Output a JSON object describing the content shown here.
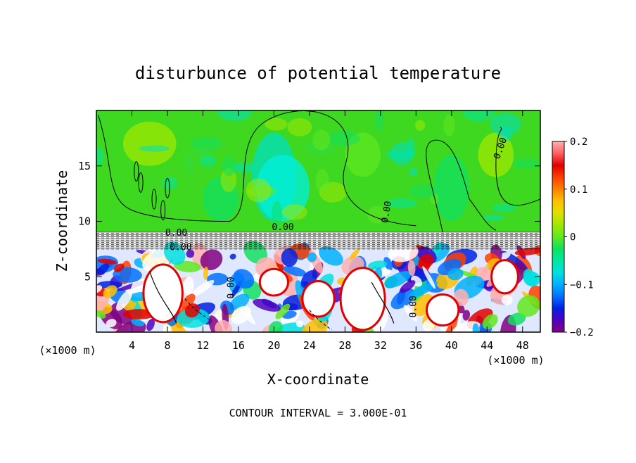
{
  "chart_data": {
    "type": "heatmap",
    "title": "disturbunce of potential temperature",
    "xlabel": "X-coordinate",
    "ylabel": "Z-coordinate",
    "x_unit": "(×1000 m)",
    "z_unit": "(×1000 m)",
    "xlim": [
      0,
      50
    ],
    "ylim": [
      0,
      20
    ],
    "x_ticks": [
      4,
      8,
      12,
      16,
      20,
      24,
      28,
      32,
      36,
      40,
      44,
      48
    ],
    "y_ticks": [
      5,
      10,
      15
    ],
    "colorbar": {
      "min": -0.2,
      "max": 0.2,
      "tick_values": [
        0.2,
        0.1,
        0,
        -0.1,
        -0.2
      ],
      "tick_labels": [
        "0.2",
        "0.1",
        "0",
        "−0.1",
        "−0.2"
      ],
      "colors": [
        "#800080",
        "#5000c0",
        "#0020e0",
        "#0070ff",
        "#00b0ff",
        "#00e0e0",
        "#00e8a0",
        "#10e060",
        "#60e820",
        "#a0e800",
        "#e0e000",
        "#ffc000",
        "#ff8000",
        "#ff4000",
        "#e00000",
        "#ff6060",
        "#ffb0b0"
      ]
    },
    "contour_interval_text": "CONTOUR INTERVAL = 3.000E-01",
    "contour_labels": [
      "0.00",
      "0.00",
      "0.00",
      "0.00",
      "0.00",
      "0.00",
      "0.00"
    ],
    "regions": {
      "upper_layer_range_z": [
        8.8,
        20
      ],
      "upper_layer_value": 0.0,
      "lower_layer_range_z": [
        0,
        7.6
      ],
      "interface_band_z": [
        7.6,
        8.8
      ]
    }
  }
}
